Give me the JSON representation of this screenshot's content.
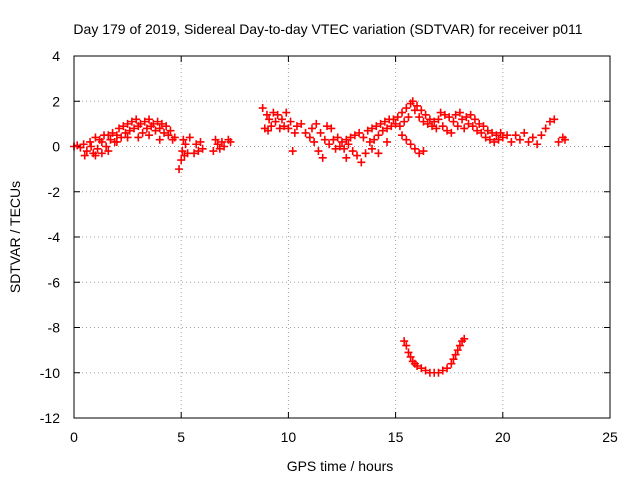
{
  "chart_data": {
    "type": "scatter",
    "title": "Day 179 of 2019, Sidereal Day-to-day VTEC variation (SDTVAR) for receiver p011",
    "xlabel": "GPS time / hours",
    "ylabel": "SDTVAR / TECUs",
    "xlim": [
      0,
      25
    ],
    "ylim": [
      -12,
      4
    ],
    "xticks": [
      "0",
      "5",
      "10",
      "15",
      "20",
      "25"
    ],
    "yticks": [
      "4",
      "2",
      "0",
      "-2",
      "-4",
      "-6",
      "-8",
      "-10",
      "-12"
    ],
    "grid": true,
    "marker": "plus",
    "color": "#ff0000",
    "series": [
      {
        "name": "p011",
        "points": [
          [
            0.0,
            0.0
          ],
          [
            0.15,
            0.05
          ],
          [
            0.3,
            -0.05
          ],
          [
            0.45,
            0.1
          ],
          [
            0.6,
            -0.2
          ],
          [
            0.75,
            0.2
          ],
          [
            0.9,
            -0.3
          ],
          [
            1.0,
            0.4
          ],
          [
            1.1,
            -0.1
          ],
          [
            1.2,
            0.3
          ],
          [
            1.3,
            -0.3
          ],
          [
            1.4,
            0.5
          ],
          [
            1.5,
            0.0
          ],
          [
            1.6,
            -0.2
          ],
          [
            1.7,
            0.3
          ],
          [
            1.8,
            0.6
          ],
          [
            1.9,
            0.2
          ],
          [
            2.0,
            0.5
          ],
          [
            2.1,
            0.8
          ],
          [
            2.2,
            0.4
          ],
          [
            2.3,
            0.9
          ],
          [
            2.4,
            0.6
          ],
          [
            2.5,
            1.0
          ],
          [
            2.6,
            0.7
          ],
          [
            2.7,
            1.1
          ],
          [
            2.8,
            0.8
          ],
          [
            2.9,
            1.2
          ],
          [
            3.0,
            0.9
          ],
          [
            3.1,
            1.0
          ],
          [
            3.2,
            0.6
          ],
          [
            3.3,
            1.1
          ],
          [
            3.4,
            0.8
          ],
          [
            3.5,
            1.2
          ],
          [
            3.6,
            0.9
          ],
          [
            3.7,
            1.0
          ],
          [
            3.8,
            0.7
          ],
          [
            3.9,
            1.1
          ],
          [
            4.0,
            0.8
          ],
          [
            4.1,
            1.0
          ],
          [
            4.2,
            0.6
          ],
          [
            4.3,
            0.9
          ],
          [
            4.4,
            0.5
          ],
          [
            4.5,
            0.7
          ],
          [
            4.6,
            0.3
          ],
          [
            4.7,
            0.4
          ],
          [
            0.5,
            -0.4
          ],
          [
            0.8,
            0.0
          ],
          [
            1.0,
            -0.4
          ],
          [
            1.3,
            0.2
          ],
          [
            1.6,
            0.5
          ],
          [
            2.0,
            0.2
          ],
          [
            2.5,
            0.4
          ],
          [
            3.0,
            0.4
          ],
          [
            3.5,
            0.5
          ],
          [
            4.0,
            0.3
          ],
          [
            4.9,
            -1.0
          ],
          [
            5.0,
            -0.6
          ],
          [
            5.05,
            -0.2
          ],
          [
            5.1,
            0.3
          ],
          [
            5.15,
            -0.4
          ],
          [
            5.2,
            0.1
          ],
          [
            5.3,
            -0.3
          ],
          [
            5.4,
            0.4
          ],
          [
            5.6,
            -0.3
          ],
          [
            5.7,
            0.1
          ],
          [
            5.8,
            -0.2
          ],
          [
            5.9,
            0.2
          ],
          [
            6.0,
            -0.1
          ],
          [
            6.5,
            -0.2
          ],
          [
            6.6,
            0.3
          ],
          [
            6.7,
            0.1
          ],
          [
            6.8,
            -0.1
          ],
          [
            6.9,
            0.2
          ],
          [
            7.0,
            0.0
          ],
          [
            7.2,
            0.3
          ],
          [
            7.3,
            0.2
          ],
          [
            8.8,
            1.7
          ],
          [
            8.9,
            0.8
          ],
          [
            9.0,
            1.4
          ],
          [
            9.05,
            0.7
          ],
          [
            9.1,
            1.2
          ],
          [
            9.2,
            0.9
          ],
          [
            9.3,
            1.5
          ],
          [
            9.4,
            1.1
          ],
          [
            9.5,
            1.4
          ],
          [
            9.6,
            0.8
          ],
          [
            9.7,
            1.2
          ],
          [
            9.8,
            0.9
          ],
          [
            9.9,
            1.5
          ],
          [
            10.0,
            0.8
          ],
          [
            10.1,
            1.1
          ],
          [
            10.2,
            -0.2
          ],
          [
            10.3,
            0.6
          ],
          [
            10.4,
            0.9
          ],
          [
            10.6,
            1.0
          ],
          [
            10.8,
            0.6
          ],
          [
            11.0,
            0.4
          ],
          [
            11.1,
            0.8
          ],
          [
            11.2,
            0.2
          ],
          [
            11.3,
            1.0
          ],
          [
            11.4,
            -0.2
          ],
          [
            11.5,
            0.6
          ],
          [
            11.6,
            -0.5
          ],
          [
            11.7,
            0.3
          ],
          [
            11.8,
            0.9
          ],
          [
            11.9,
            0.1
          ],
          [
            12.0,
            0.8
          ],
          [
            12.1,
            0.3
          ],
          [
            12.2,
            -0.1
          ],
          [
            12.3,
            0.4
          ],
          [
            12.4,
            0.0
          ],
          [
            12.5,
            0.2
          ],
          [
            12.6,
            -0.1
          ],
          [
            12.7,
            0.3
          ],
          [
            12.8,
            0.1
          ],
          [
            12.9,
            0.4
          ],
          [
            13.0,
            -0.2
          ],
          [
            13.1,
            0.5
          ],
          [
            13.2,
            -0.4
          ],
          [
            13.3,
            0.6
          ],
          [
            13.4,
            -0.7
          ],
          [
            13.5,
            0.4
          ],
          [
            13.6,
            -0.3
          ],
          [
            13.7,
            0.7
          ],
          [
            13.8,
            0.2
          ],
          [
            13.9,
            0.8
          ],
          [
            14.0,
            0.3
          ],
          [
            14.1,
            0.9
          ],
          [
            14.2,
            0.5
          ],
          [
            14.3,
            1.0
          ],
          [
            14.4,
            0.7
          ],
          [
            14.5,
            1.1
          ],
          [
            14.6,
            0.8
          ],
          [
            14.7,
            1.2
          ],
          [
            14.8,
            0.9
          ],
          [
            14.9,
            1.2
          ],
          [
            15.0,
            1.0
          ],
          [
            15.1,
            1.3
          ],
          [
            15.2,
            0.9
          ],
          [
            15.3,
            1.5
          ],
          [
            15.4,
            1.1
          ],
          [
            15.5,
            1.7
          ],
          [
            15.6,
            1.3
          ],
          [
            15.7,
            1.9
          ],
          [
            15.8,
            2.0
          ],
          [
            15.9,
            1.6
          ],
          [
            16.0,
            1.8
          ],
          [
            16.1,
            1.3
          ],
          [
            16.2,
            1.6
          ],
          [
            16.3,
            1.1
          ],
          [
            16.4,
            1.4
          ],
          [
            16.5,
            1.0
          ],
          [
            16.6,
            1.2
          ],
          [
            16.7,
            0.9
          ],
          [
            16.8,
            1.1
          ],
          [
            16.9,
            0.8
          ],
          [
            17.0,
            1.2
          ],
          [
            17.1,
            1.5
          ],
          [
            17.2,
            0.9
          ],
          [
            17.3,
            1.4
          ],
          [
            17.4,
            0.7
          ],
          [
            17.5,
            1.3
          ],
          [
            17.6,
            0.6
          ],
          [
            17.7,
            1.1
          ],
          [
            17.8,
            1.4
          ],
          [
            17.9,
            0.9
          ],
          [
            18.0,
            1.5
          ],
          [
            18.1,
            1.2
          ],
          [
            18.2,
            0.8
          ],
          [
            18.3,
            1.3
          ],
          [
            18.4,
            1.0
          ],
          [
            18.5,
            1.4
          ],
          [
            18.6,
            0.9
          ],
          [
            18.7,
            1.2
          ],
          [
            18.8,
            0.7
          ],
          [
            18.9,
            1.0
          ],
          [
            19.0,
            0.6
          ],
          [
            19.1,
            0.9
          ],
          [
            19.2,
            0.4
          ],
          [
            19.3,
            0.7
          ],
          [
            19.4,
            0.3
          ],
          [
            19.5,
            0.6
          ],
          [
            19.6,
            0.2
          ],
          [
            19.7,
            0.5
          ],
          [
            19.8,
            0.3
          ],
          [
            19.9,
            0.6
          ],
          [
            20.0,
            0.4
          ],
          [
            20.2,
            0.5
          ],
          [
            20.4,
            0.2
          ],
          [
            20.6,
            0.5
          ],
          [
            20.8,
            0.3
          ],
          [
            21.0,
            0.6
          ],
          [
            21.2,
            0.2
          ],
          [
            21.4,
            0.4
          ],
          [
            21.6,
            0.1
          ],
          [
            21.8,
            0.5
          ],
          [
            22.0,
            0.8
          ],
          [
            22.2,
            1.1
          ],
          [
            22.4,
            1.2
          ],
          [
            22.6,
            0.2
          ],
          [
            22.8,
            0.4
          ],
          [
            22.9,
            0.3
          ],
          [
            15.5,
            0.3
          ],
          [
            15.7,
            0.1
          ],
          [
            15.9,
            -0.1
          ],
          [
            16.1,
            -0.3
          ],
          [
            16.3,
            -0.2
          ],
          [
            15.3,
            0.5
          ],
          [
            14.2,
            -0.3
          ],
          [
            14.6,
            0.2
          ],
          [
            13.9,
            -0.1
          ],
          [
            12.7,
            -0.5
          ],
          [
            15.4,
            -8.6
          ],
          [
            15.5,
            -8.8
          ],
          [
            15.6,
            -9.1
          ],
          [
            15.7,
            -9.3
          ],
          [
            15.8,
            -9.5
          ],
          [
            15.9,
            -9.6
          ],
          [
            16.0,
            -9.7
          ],
          [
            16.2,
            -9.8
          ],
          [
            16.4,
            -9.9
          ],
          [
            16.6,
            -10.0
          ],
          [
            16.8,
            -10.0
          ],
          [
            17.0,
            -10.0
          ],
          [
            17.2,
            -9.9
          ],
          [
            17.4,
            -9.8
          ],
          [
            17.6,
            -9.6
          ],
          [
            17.7,
            -9.4
          ],
          [
            17.8,
            -9.2
          ],
          [
            17.9,
            -9.0
          ],
          [
            18.0,
            -8.8
          ],
          [
            18.1,
            -8.6
          ],
          [
            18.2,
            -8.5
          ]
        ]
      }
    ]
  }
}
